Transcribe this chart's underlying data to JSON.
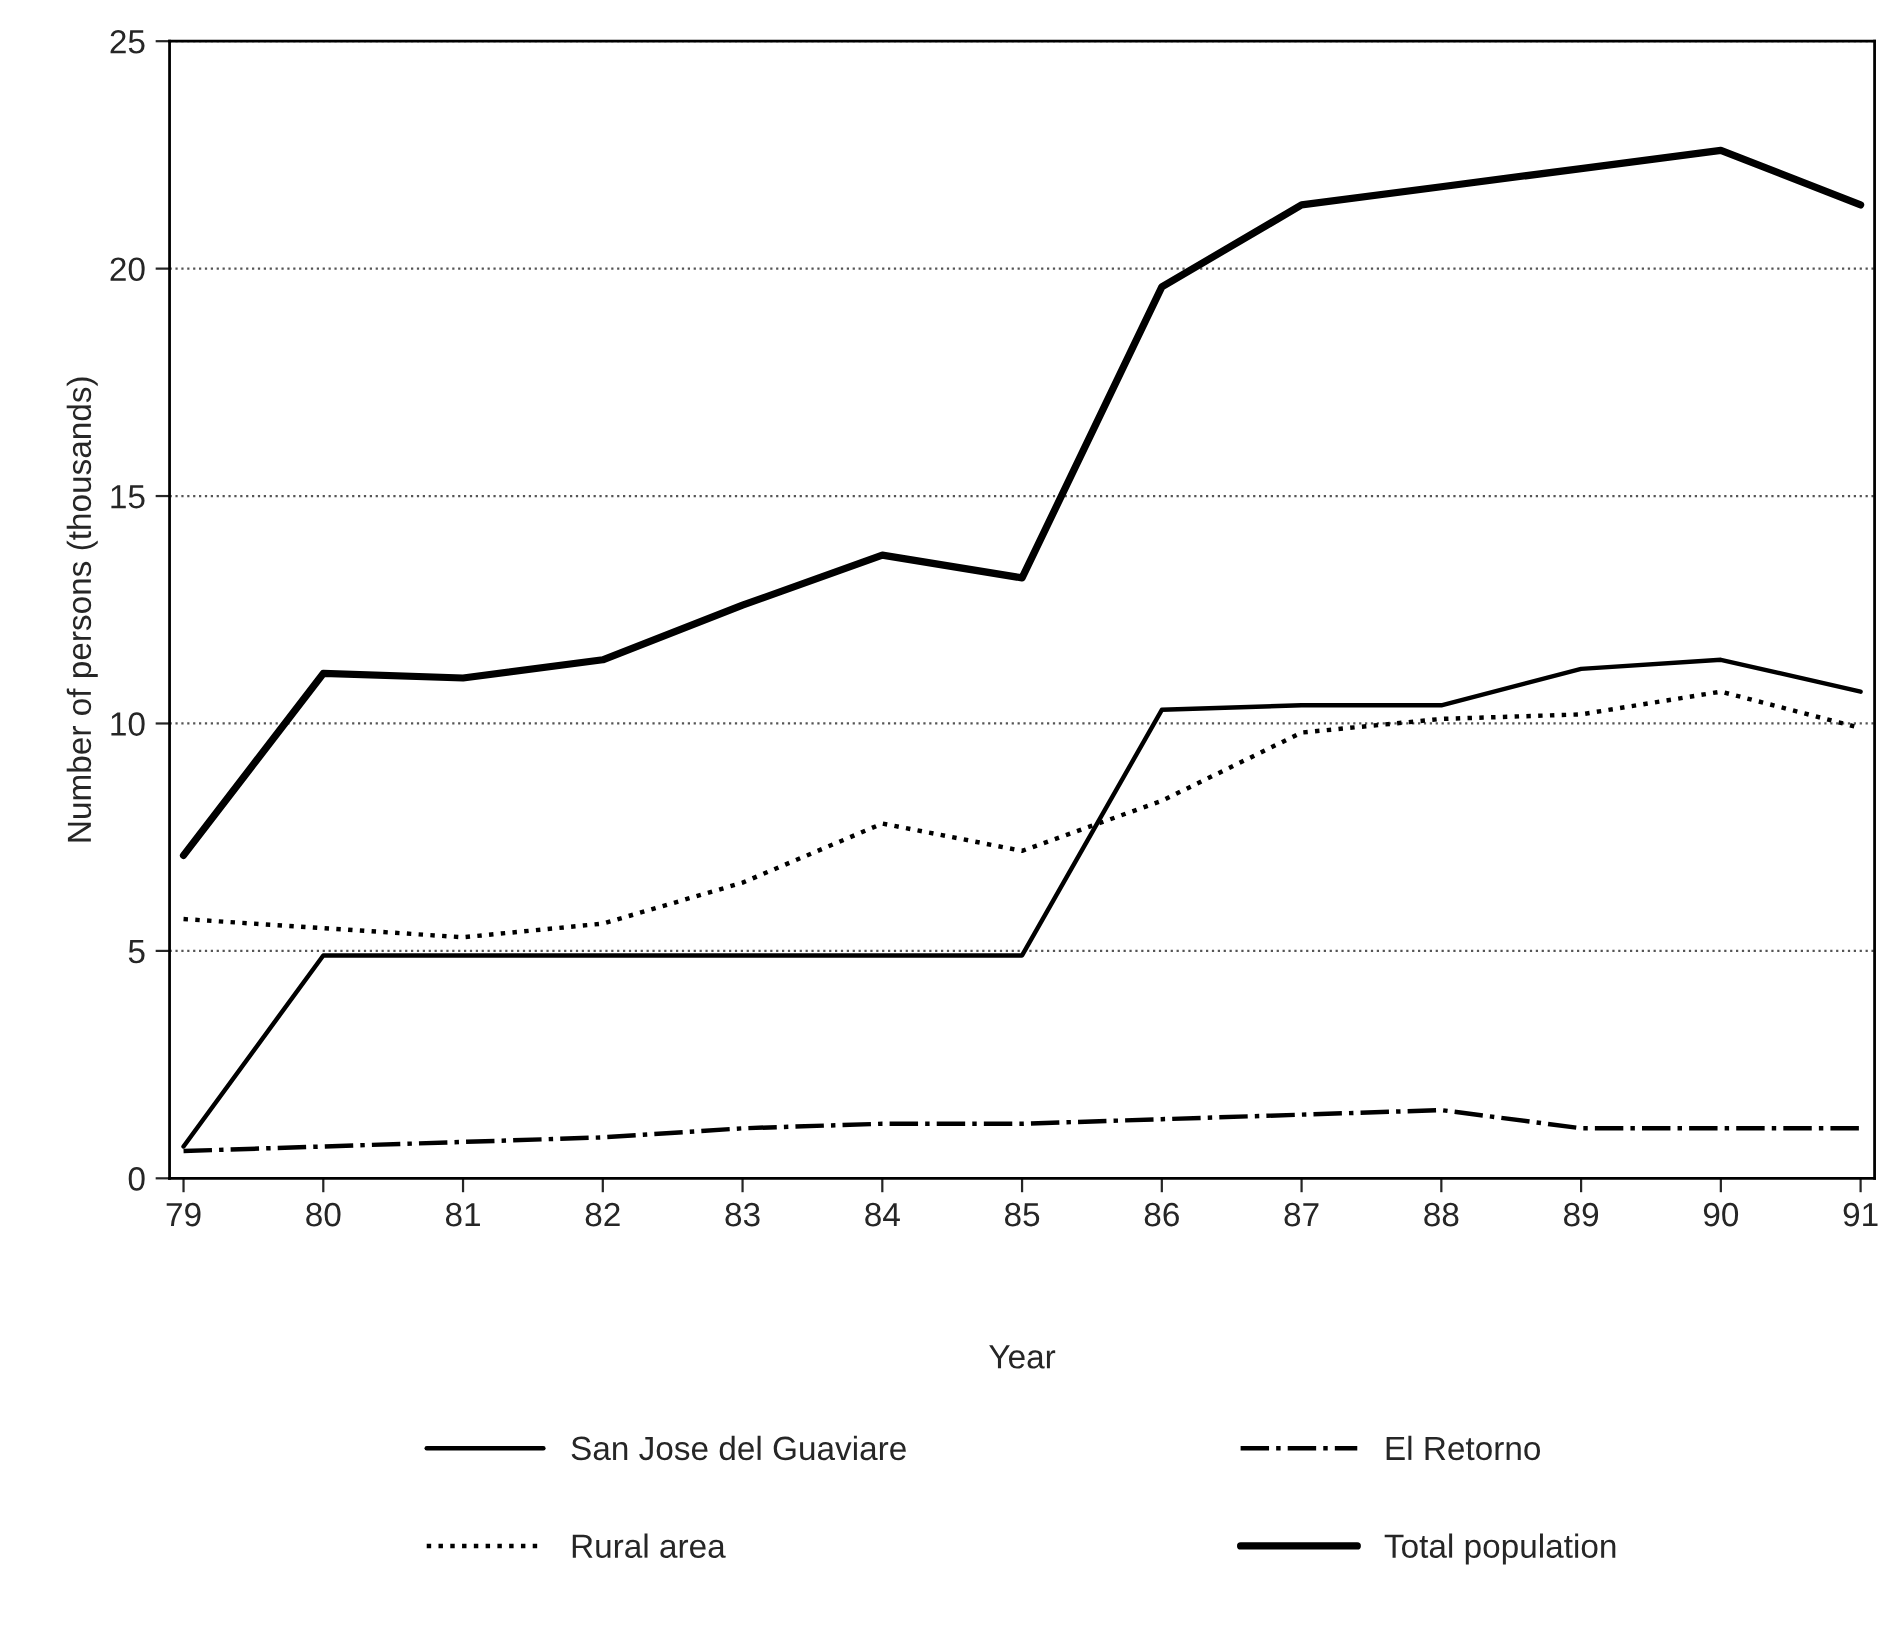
{
  "chart_data": {
    "type": "line",
    "xlabel": "Year",
    "ylabel": "Number of persons (thousands)",
    "categories": [
      "79",
      "80",
      "81",
      "82",
      "83",
      "84",
      "85",
      "86",
      "87",
      "88",
      "89",
      "90",
      "91"
    ],
    "series": [
      {
        "name": "San Jose del Guaviare",
        "color": "#000000",
        "line_style": "solid",
        "values": [
          0.7,
          4.9,
          4.9,
          4.9,
          4.9,
          4.9,
          4.9,
          10.3,
          10.4,
          10.4,
          11.2,
          11.4,
          10.7
        ]
      },
      {
        "name": "Rural area",
        "color": "#000000",
        "line_style": "dotted",
        "values": [
          5.7,
          5.5,
          5.3,
          5.6,
          6.5,
          7.8,
          7.2,
          8.3,
          9.8,
          10.1,
          10.2,
          10.7,
          9.9
        ]
      },
      {
        "name": "El Retorno",
        "color": "#000000",
        "line_style": "dashdot",
        "values": [
          0.6,
          0.7,
          0.8,
          0.9,
          1.1,
          1.2,
          1.2,
          1.3,
          1.4,
          1.5,
          1.1,
          1.1,
          1.1
        ]
      },
      {
        "name": "Total population",
        "color": "#000000",
        "line_style": "solid",
        "values": [
          7.1,
          11.1,
          11.0,
          11.4,
          12.6,
          13.7,
          13.2,
          19.6,
          21.4,
          21.8,
          22.2,
          22.6,
          21.4
        ]
      }
    ],
    "ylim": [
      0,
      25
    ],
    "yticks": [
      0,
      5,
      10,
      15,
      20,
      25
    ],
    "grid": "y",
    "legend": "bottom"
  }
}
